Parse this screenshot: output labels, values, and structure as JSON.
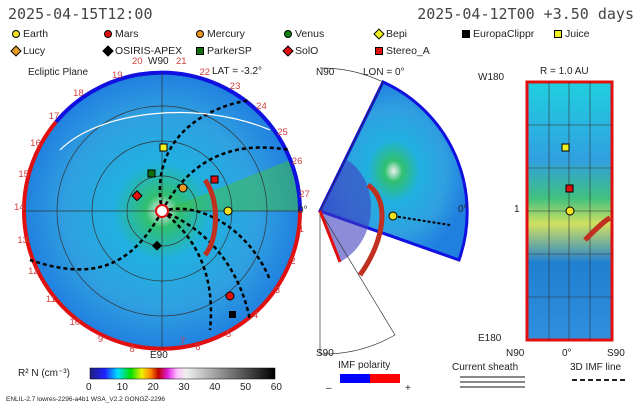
{
  "header": {
    "left_time": "2025-04-15T12:00",
    "right_time": "2025-04-12T00 +3.50 days"
  },
  "legend": [
    {
      "label": "Earth",
      "shape": "circle",
      "color": "#f0e020"
    },
    {
      "label": "Mars",
      "shape": "circle",
      "color": "#e01010"
    },
    {
      "label": "Mercury",
      "shape": "circle",
      "color": "#e89a20"
    },
    {
      "label": "Venus",
      "shape": "circle",
      "color": "#108010"
    },
    {
      "label": "Bepi",
      "shape": "diamond",
      "color": "#f0f020"
    },
    {
      "label": "EuropaClippr",
      "shape": "square",
      "color": "#000000"
    },
    {
      "label": "Juice",
      "shape": "square",
      "color": "#f0f020"
    },
    {
      "label": "Lucy",
      "shape": "diamond",
      "color": "#e8a020"
    },
    {
      "label": "OSIRIS-APEX",
      "shape": "diamond",
      "color": "#000000"
    },
    {
      "label": "ParkerSP",
      "shape": "square",
      "color": "#107010"
    },
    {
      "label": "SolO",
      "shape": "diamond",
      "color": "#e01010"
    },
    {
      "label": "Stereo_A",
      "shape": "square",
      "color": "#e01010"
    }
  ],
  "ecliptic": {
    "title": "Ecliptic Plane",
    "lat": "LAT = -3.2°",
    "top": "W90",
    "bottom": "E90",
    "right": "0°",
    "ticks": [
      "1",
      "2",
      "3",
      "4",
      "5",
      "6",
      "7",
      "8",
      "9",
      "10",
      "11",
      "12",
      "13",
      "14",
      "15",
      "16",
      "17",
      "18",
      "19",
      "20",
      "21",
      "22",
      "23",
      "24",
      "25",
      "26",
      "27"
    ]
  },
  "meridional": {
    "top": "N90",
    "lon": "LON = 0°",
    "bottom": "S90",
    "right": "0°"
  },
  "radial": {
    "title": "R = 1.0 AU",
    "top": "W180",
    "mid": "1",
    "bottom": "E180",
    "x_left": "N90",
    "x_mid": "0°",
    "x_right": "S90"
  },
  "colorbar": {
    "label": "R² N (cm⁻³)",
    "ticks": [
      "0",
      "10",
      "20",
      "30",
      "40",
      "50",
      "60"
    ],
    "range": [
      0,
      60
    ]
  },
  "imf": {
    "title": "IMF polarity",
    "minus": "–",
    "plus": "+",
    "neg_color": "#0000ff",
    "pos_color": "#ff0000"
  },
  "sheath": {
    "title": "Current sheath"
  },
  "imfline": {
    "title": "3D IMF line"
  },
  "footer": "ENLIL-2.7 lowres-2296-a4b1 WSA_V2.2 GONGZ-2296"
}
